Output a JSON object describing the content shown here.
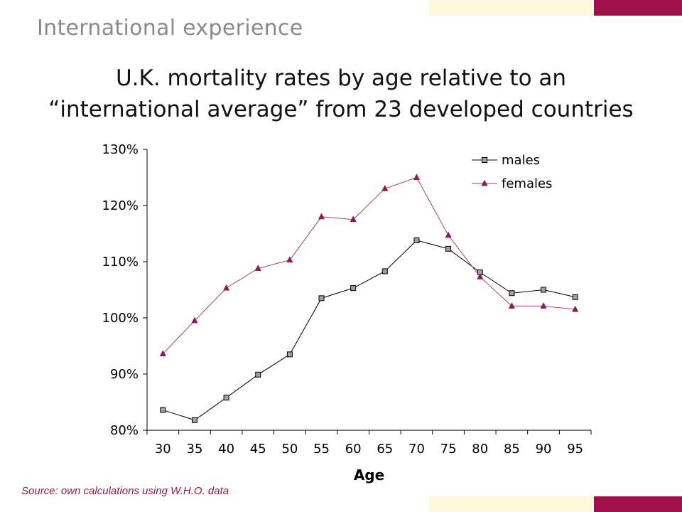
{
  "slide": {
    "heading": "International experience",
    "title_line1": "U.K. mortality rates by age relative to an",
    "title_line2": "“international average” from 23 developed countries",
    "source": "Source: own calculations using W.H.O. data",
    "colors": {
      "accent_red": "#a0104a",
      "accent_cream": "#fdf8dc",
      "heading_gray": "#8a8a8a",
      "source_color": "#8b1a4a"
    }
  },
  "chart_data": {
    "type": "line",
    "title": "U.K. mortality rates by age relative to an “international average” from 23 developed countries",
    "xlabel": "Age",
    "ylabel": "",
    "categories": [
      "30",
      "35",
      "40",
      "45",
      "50",
      "55",
      "60",
      "65",
      "70",
      "75",
      "80",
      "85",
      "90",
      "95"
    ],
    "ylim": [
      80,
      130
    ],
    "yticks": [
      80,
      90,
      100,
      110,
      120,
      130
    ],
    "ytick_labels": [
      "80%",
      "90%",
      "100%",
      "110%",
      "120%",
      "130%"
    ],
    "grid": false,
    "legend_position": "top-right",
    "series": [
      {
        "name": "males",
        "marker": "square",
        "color": "#000000",
        "marker_color": "#a0a0a0",
        "values": [
          83.6,
          81.8,
          85.8,
          89.9,
          93.5,
          103.5,
          105.3,
          108.3,
          113.8,
          112.3,
          108.1,
          104.4,
          105.0,
          103.7
        ]
      },
      {
        "name": "females",
        "marker": "triangle",
        "color": "#a0406e",
        "marker_color": "#8b1a5a",
        "values": [
          93.6,
          99.5,
          105.3,
          108.8,
          110.3,
          118.0,
          117.5,
          123.0,
          125.0,
          114.7,
          107.3,
          102.1,
          102.1,
          101.5
        ]
      }
    ]
  }
}
